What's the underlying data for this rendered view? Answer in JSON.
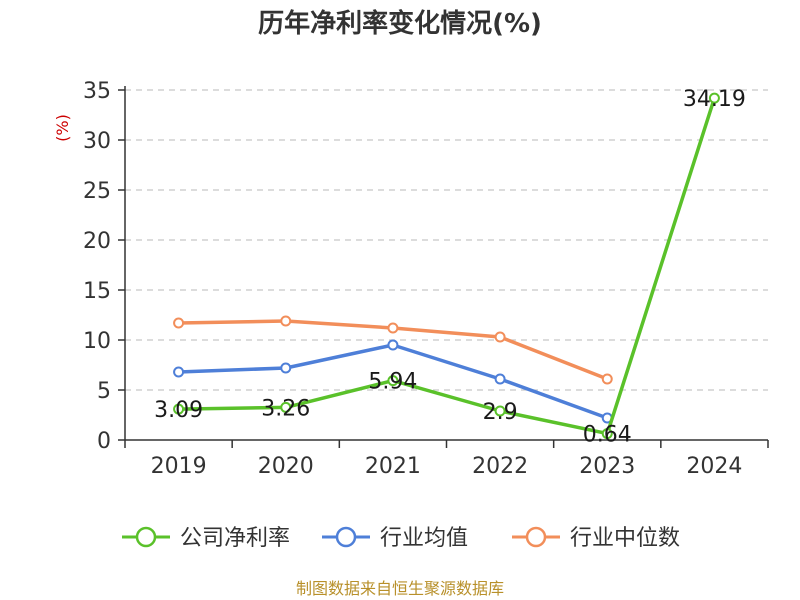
{
  "chart_data": {
    "type": "line",
    "title": "历年净利率变化情况(%)",
    "ylabel": "(%)",
    "xlabel": "",
    "categories": [
      "2019",
      "2020",
      "2021",
      "2022",
      "2023",
      "2024"
    ],
    "ylim": [
      0,
      35
    ],
    "yticks": [
      0,
      5,
      10,
      15,
      20,
      25,
      30,
      35
    ],
    "grid": true,
    "legend_position": "bottom",
    "series": [
      {
        "name": "公司净利率",
        "color": "#5ac12a",
        "values": [
          3.09,
          3.26,
          5.94,
          2.9,
          0.64,
          34.19
        ],
        "labels": [
          "3.09",
          "3.26",
          "5.94",
          "2.9",
          "0.64",
          "34.19"
        ]
      },
      {
        "name": "行业均值",
        "color": "#4e7fd8",
        "values": [
          6.8,
          7.2,
          9.5,
          6.1,
          2.2,
          null
        ]
      },
      {
        "name": "行业中位数",
        "color": "#f28e5a",
        "values": [
          11.7,
          11.9,
          11.2,
          10.3,
          6.1,
          null
        ]
      }
    ]
  },
  "source": "制图数据来自恒生聚源数据库"
}
